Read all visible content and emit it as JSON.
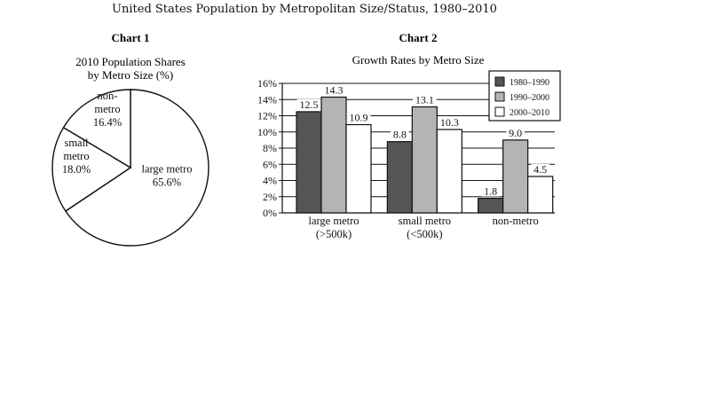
{
  "title": "United States Population by Metropolitan Size/Status, 1980–2010",
  "colors": {
    "1980-1990": "#555555",
    "1990-2000": "#b4b4b4",
    "2000-2010": "#ffffff",
    "stroke": "#111111"
  },
  "chart_data": [
    {
      "type": "pie",
      "heading": "Chart 1",
      "title": "2010 Population Shares",
      "subtitle": "by Metro Size (%)",
      "categories": [
        "large metro",
        "small metro",
        "non-metro"
      ],
      "values": [
        65.6,
        18.0,
        16.4
      ],
      "labels": [
        [
          "large metro",
          "65.6%"
        ],
        [
          "small",
          "metro",
          "18.0%"
        ],
        [
          "non-",
          "metro",
          "16.4%"
        ]
      ]
    },
    {
      "type": "bar",
      "heading": "Chart 2",
      "title": "Growth Rates by Metro Size",
      "categories": [
        [
          "large metro",
          "(>500k)"
        ],
        [
          "small metro",
          "(<500k)"
        ],
        [
          "non-metro"
        ]
      ],
      "series": [
        {
          "name": "1980–1990",
          "values": [
            12.5,
            8.8,
            1.8
          ]
        },
        {
          "name": "1990–2000",
          "values": [
            14.3,
            13.1,
            9.0
          ]
        },
        {
          "name": "2000–2010",
          "values": [
            10.9,
            10.3,
            4.5
          ]
        }
      ],
      "ylim": [
        0,
        16
      ],
      "yticks": [
        "0%",
        "2%",
        "4%",
        "6%",
        "8%",
        "10%",
        "12%",
        "14%",
        "16%"
      ],
      "grid": true,
      "legend": "top-right"
    }
  ]
}
